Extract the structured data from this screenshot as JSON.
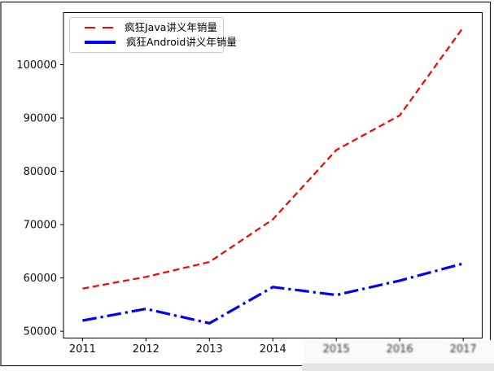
{
  "chart_data": {
    "type": "line",
    "title": "",
    "x": [
      2011,
      2012,
      2013,
      2014,
      2015,
      2016,
      2017
    ],
    "categories": [
      "2011",
      "2012",
      "2013",
      "2014",
      "2015",
      "2016",
      "2017"
    ],
    "obscured_x_tick_indices": [
      4,
      5,
      6
    ],
    "y_ticks": [
      50000,
      60000,
      70000,
      80000,
      90000,
      100000
    ],
    "y_tick_labels": [
      "50000",
      "60000",
      "70000",
      "80000",
      "90000",
      "100000"
    ],
    "xlim": [
      2010.7,
      2017.3
    ],
    "ylim": [
      48725,
      109775
    ],
    "grid": false,
    "legend_position": "upper-left",
    "axis_color": "#000000",
    "tick_label_color": "#111111",
    "series": [
      {
        "name": "疯狂Java讲义年销量",
        "color": "#ff0000",
        "linestyle": "dashed",
        "linewidth": 2,
        "legend_sample": "dashes",
        "values": [
          58000,
          60200,
          63000,
          71000,
          84000,
          90500,
          107000
        ]
      },
      {
        "name": "疯狂Android讲义年销量",
        "color": "#0000ff",
        "linestyle": "dashdot",
        "linewidth": 3,
        "legend_sample": "solid",
        "values": [
          52000,
          54200,
          51500,
          58300,
          56800,
          59500,
          62700
        ]
      }
    ],
    "watermark_strip_color": "#e4e4e4"
  }
}
